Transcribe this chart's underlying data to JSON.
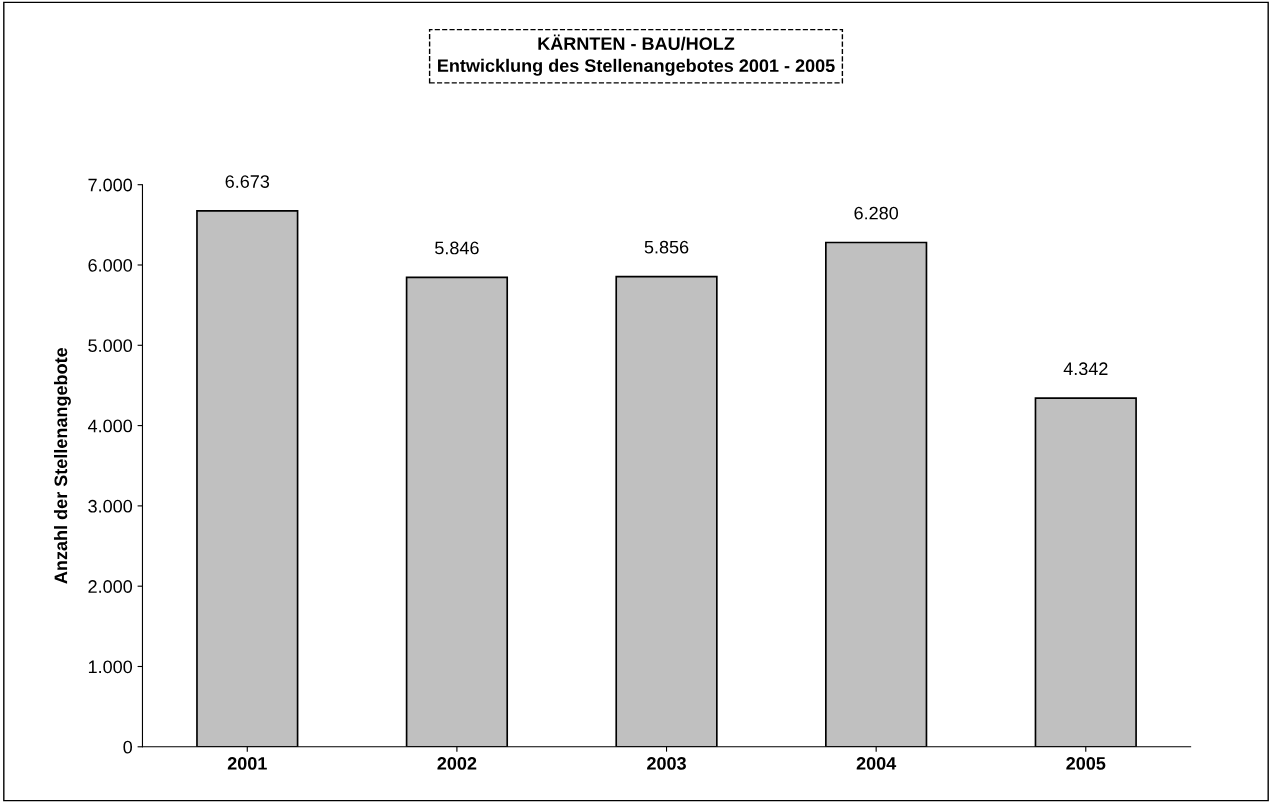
{
  "chart_data": {
    "type": "bar",
    "title": "KÄRNTEN - BAU/HOLZ\nEntwicklung des Stellenangebotes 2001 - 2005",
    "ylabel": "Anzahl der Stellenangebote",
    "categories": [
      "2001",
      "2002",
      "2003",
      "2004",
      "2005"
    ],
    "values": [
      6673,
      5846,
      5856,
      6280,
      4342
    ],
    "value_labels": [
      "6.673",
      "5.846",
      "5.856",
      "6.280",
      "4.342"
    ],
    "color": "#c0c0c0",
    "ylim": [
      0,
      7000
    ],
    "yticks": [
      0,
      {
        "value": 1000,
        "label": "1.000"
      },
      {
        "value": 2000,
        "label": "2.000"
      },
      {
        "value": 3000,
        "label": "3.000"
      },
      {
        "value": 4000,
        "label": "4.000"
      },
      {
        "value": 5000,
        "label": "5.000"
      },
      {
        "value": 6000,
        "label": "6.000"
      },
      {
        "value": 7000,
        "label": "7.000"
      }
    ],
    "grid": false,
    "legend": false
  }
}
